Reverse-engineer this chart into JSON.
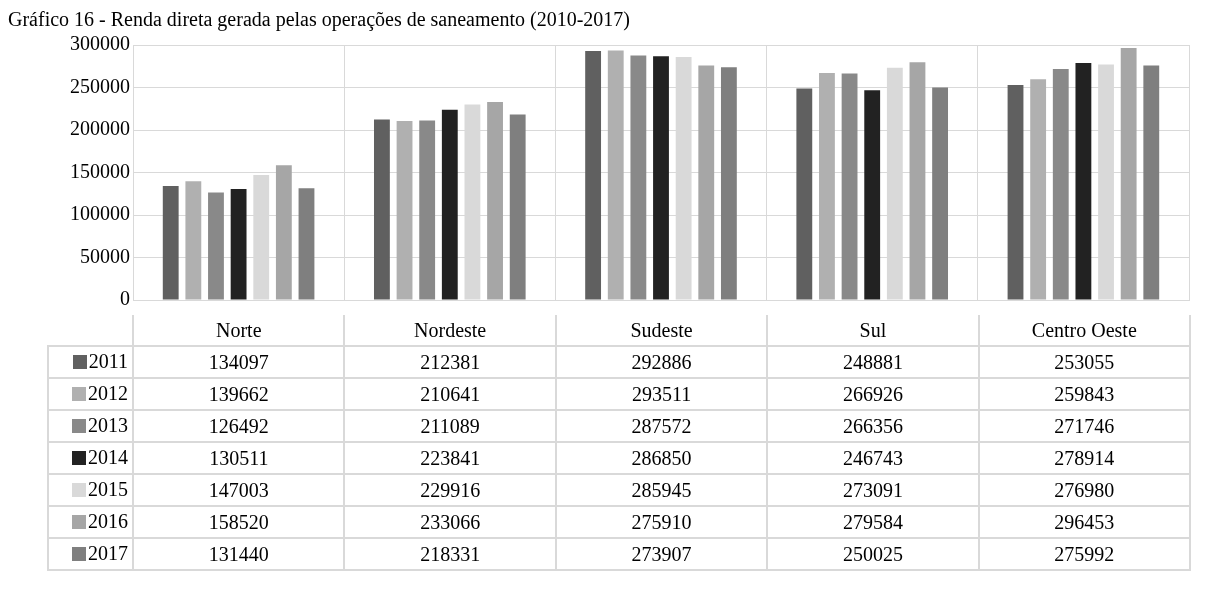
{
  "chart_data": {
    "type": "bar",
    "title": "Gráfico 16 - Renda direta gerada pelas operações de saneamento (2010-2017)",
    "categories": [
      "Norte",
      "Nordeste",
      "Sudeste",
      "Sul",
      "Centro Oeste"
    ],
    "series": [
      {
        "name": "2011",
        "color": "#606060",
        "values": [
          134097,
          212381,
          292886,
          248881,
          253055
        ]
      },
      {
        "name": "2012",
        "color": "#b0b0b0",
        "values": [
          139662,
          210641,
          293511,
          266926,
          259843
        ]
      },
      {
        "name": "2013",
        "color": "#898989",
        "values": [
          126492,
          211089,
          287572,
          266356,
          271746
        ]
      },
      {
        "name": "2014",
        "color": "#222222",
        "values": [
          130511,
          223841,
          286850,
          246743,
          278914
        ]
      },
      {
        "name": "2015",
        "color": "#d9d9d9",
        "values": [
          147003,
          229916,
          285945,
          273091,
          276980
        ]
      },
      {
        "name": "2016",
        "color": "#a6a6a6",
        "values": [
          158520,
          233066,
          275910,
          279584,
          296453
        ]
      },
      {
        "name": "2017",
        "color": "#7f7f7f",
        "values": [
          131440,
          218331,
          273907,
          250025,
          275992
        ]
      }
    ],
    "ylim": [
      0,
      300000
    ],
    "yticks": [
      0,
      50000,
      100000,
      150000,
      200000,
      250000,
      300000
    ],
    "grid": true,
    "legend": "bottom",
    "data_labels": true
  }
}
